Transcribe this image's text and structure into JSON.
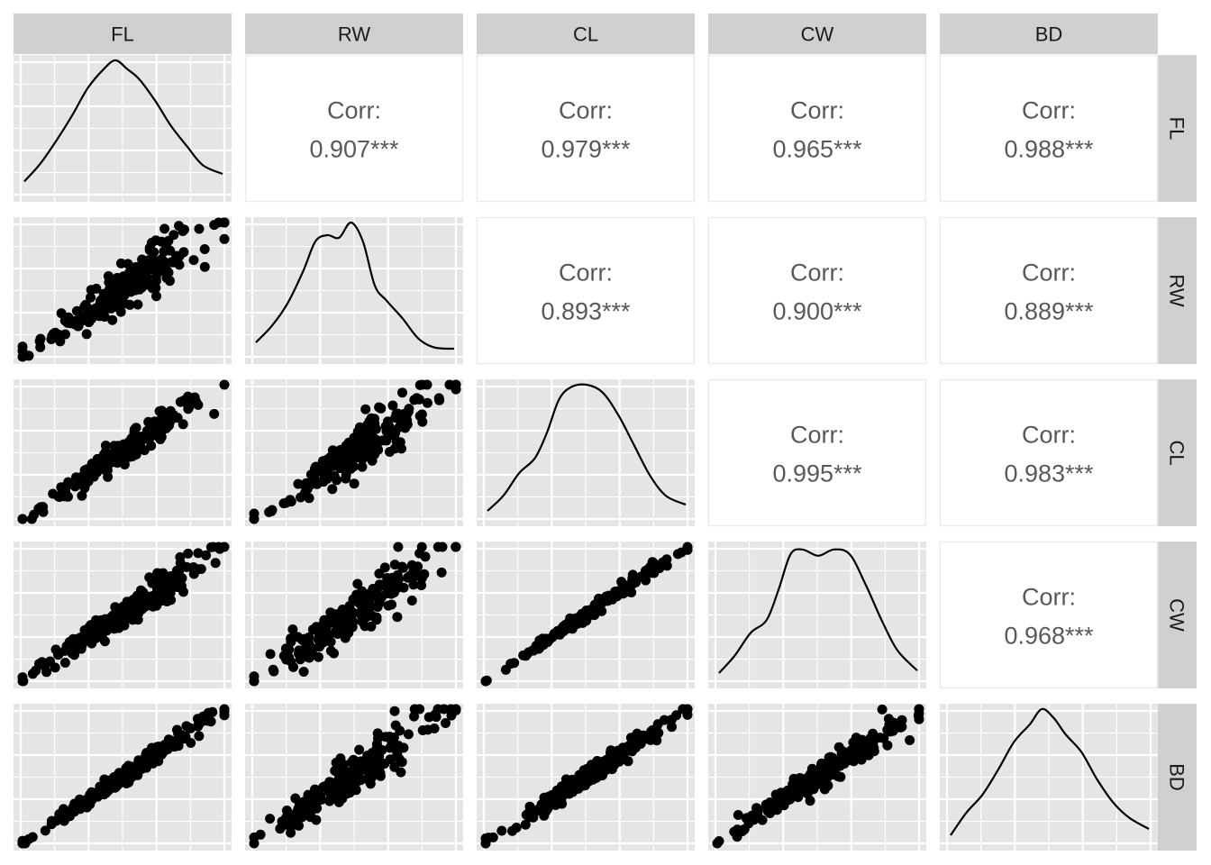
{
  "chart_data": {
    "type": "scatter",
    "title": "",
    "subtitle": "",
    "description": "ggpairs scatterplot matrix: lower = scatter, diagonal = density, upper = correlation",
    "variables": [
      "FL",
      "RW",
      "CL",
      "CW",
      "BD"
    ],
    "column_strip_labels": [
      "FL",
      "RW",
      "CL",
      "CW",
      "BD"
    ],
    "row_strip_labels": [
      "FL",
      "RW",
      "CL",
      "CW",
      "BD"
    ],
    "grid": true,
    "panel_background": "#e5e5e5",
    "strip_background": "#d0d0d0",
    "point_color": "#000000",
    "correlation_text_color": "#595959",
    "correlation_label": "Corr:",
    "correlations": [
      {
        "row": "RW",
        "col": "FL",
        "upper_row": "FL",
        "upper_col": "RW",
        "value": "0.907***"
      },
      {
        "row": "CL",
        "col": "FL",
        "upper_row": "FL",
        "upper_col": "CL",
        "value": "0.979***"
      },
      {
        "row": "CW",
        "col": "FL",
        "upper_row": "FL",
        "upper_col": "CW",
        "value": "0.965***"
      },
      {
        "row": "BD",
        "col": "FL",
        "upper_row": "FL",
        "upper_col": "BD",
        "value": "0.988***"
      },
      {
        "row": "CL",
        "col": "RW",
        "upper_row": "RW",
        "upper_col": "CL",
        "value": "0.893***"
      },
      {
        "row": "CW",
        "col": "RW",
        "upper_row": "RW",
        "upper_col": "CW",
        "value": "0.900***"
      },
      {
        "row": "BD",
        "col": "RW",
        "upper_row": "RW",
        "upper_col": "BD",
        "value": "0.889***"
      },
      {
        "row": "CW",
        "col": "CL",
        "upper_row": "CL",
        "upper_col": "CW",
        "value": "0.995***"
      },
      {
        "row": "BD",
        "col": "CL",
        "upper_row": "CL",
        "upper_col": "BD",
        "value": "0.983***"
      },
      {
        "row": "BD",
        "col": "CW",
        "upper_row": "CW",
        "upper_col": "BD",
        "value": "0.968***"
      }
    ],
    "upper_cells": [
      {
        "r": 0,
        "c": 1,
        "value": "0.907***"
      },
      {
        "r": 0,
        "c": 2,
        "value": "0.979***"
      },
      {
        "r": 0,
        "c": 3,
        "value": "0.965***"
      },
      {
        "r": 0,
        "c": 4,
        "value": "0.988***"
      },
      {
        "r": 1,
        "c": 2,
        "value": "0.893***"
      },
      {
        "r": 1,
        "c": 3,
        "value": "0.900***"
      },
      {
        "r": 1,
        "c": 4,
        "value": "0.889***"
      },
      {
        "r": 2,
        "c": 3,
        "value": "0.995***"
      },
      {
        "r": 2,
        "c": 4,
        "value": "0.983***"
      },
      {
        "r": 3,
        "c": 4,
        "value": "0.968***"
      }
    ],
    "densities": [
      {
        "var": "FL",
        "x": [
          0.0,
          0.08,
          0.16,
          0.24,
          0.32,
          0.4,
          0.46,
          0.52,
          0.58,
          0.66,
          0.74,
          0.82,
          0.9,
          1.0
        ],
        "y": [
          0.04,
          0.18,
          0.36,
          0.56,
          0.78,
          0.93,
          1.0,
          0.93,
          0.85,
          0.68,
          0.48,
          0.32,
          0.17,
          0.1
        ]
      },
      {
        "var": "RW",
        "x": [
          0.0,
          0.08,
          0.16,
          0.24,
          0.3,
          0.36,
          0.42,
          0.48,
          0.54,
          0.6,
          0.66,
          0.74,
          0.82,
          0.9,
          1.0
        ],
        "y": [
          0.05,
          0.18,
          0.36,
          0.62,
          0.85,
          0.9,
          0.88,
          1.0,
          0.85,
          0.5,
          0.38,
          0.24,
          0.08,
          0.01,
          0.0
        ]
      },
      {
        "var": "CL",
        "x": [
          0.0,
          0.08,
          0.16,
          0.24,
          0.3,
          0.36,
          0.42,
          0.5,
          0.58,
          0.66,
          0.74,
          0.82,
          0.9,
          1.0
        ],
        "y": [
          0.0,
          0.12,
          0.3,
          0.42,
          0.62,
          0.88,
          0.98,
          1.0,
          0.94,
          0.76,
          0.52,
          0.28,
          0.12,
          0.05
        ]
      },
      {
        "var": "CW",
        "x": [
          0.0,
          0.08,
          0.16,
          0.24,
          0.3,
          0.36,
          0.42,
          0.5,
          0.58,
          0.66,
          0.74,
          0.82,
          0.9,
          1.0
        ],
        "y": [
          0.0,
          0.14,
          0.32,
          0.42,
          0.66,
          0.94,
          0.98,
          0.93,
          0.98,
          0.94,
          0.7,
          0.42,
          0.18,
          0.02
        ]
      },
      {
        "var": "BD",
        "x": [
          0.0,
          0.08,
          0.16,
          0.24,
          0.32,
          0.4,
          0.46,
          0.52,
          0.58,
          0.66,
          0.74,
          0.82,
          0.9,
          1.0
        ],
        "y": [
          0.0,
          0.18,
          0.32,
          0.52,
          0.74,
          0.88,
          1.0,
          0.93,
          0.8,
          0.66,
          0.44,
          0.26,
          0.14,
          0.05
        ]
      }
    ],
    "scatter_clouds": [
      {
        "r": 1,
        "c": 0,
        "x_var": "FL",
        "y_var": "RW",
        "correlation": 0.907,
        "spread": 0.075,
        "fan": true
      },
      {
        "r": 2,
        "c": 0,
        "x_var": "FL",
        "y_var": "CL",
        "correlation": 0.979,
        "spread": 0.045,
        "fan": false
      },
      {
        "r": 2,
        "c": 1,
        "x_var": "RW",
        "y_var": "CL",
        "correlation": 0.893,
        "spread": 0.08,
        "fan": true
      },
      {
        "r": 3,
        "c": 0,
        "x_var": "FL",
        "y_var": "CW",
        "correlation": 0.965,
        "spread": 0.055,
        "fan": false
      },
      {
        "r": 3,
        "c": 1,
        "x_var": "RW",
        "y_var": "CW",
        "correlation": 0.9,
        "spread": 0.08,
        "fan": true
      },
      {
        "r": 3,
        "c": 2,
        "x_var": "CL",
        "y_var": "CW",
        "correlation": 0.995,
        "spread": 0.02,
        "fan": false
      },
      {
        "r": 4,
        "c": 0,
        "x_var": "FL",
        "y_var": "BD",
        "correlation": 0.988,
        "spread": 0.03,
        "fan": false
      },
      {
        "r": 4,
        "c": 1,
        "x_var": "RW",
        "y_var": "BD",
        "correlation": 0.889,
        "spread": 0.085,
        "fan": true
      },
      {
        "r": 4,
        "c": 2,
        "x_var": "CL",
        "y_var": "BD",
        "correlation": 0.983,
        "spread": 0.035,
        "fan": false
      },
      {
        "r": 4,
        "c": 3,
        "x_var": "CW",
        "y_var": "BD",
        "correlation": 0.968,
        "spread": 0.05,
        "fan": false
      }
    ],
    "points_per_panel": 200,
    "xlabel": "",
    "ylabel": "",
    "legend": "none"
  }
}
